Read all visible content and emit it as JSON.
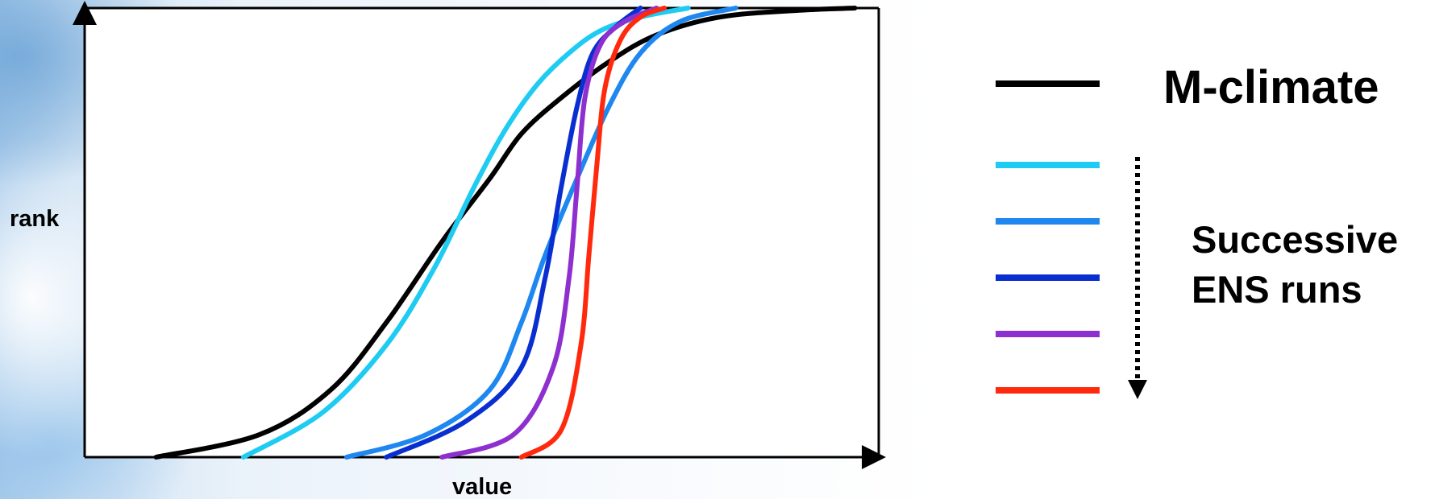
{
  "chart_data": {
    "type": "line",
    "xlabel": "value",
    "ylabel": "rank",
    "grid": false,
    "legend_placement": "right",
    "series": [
      {
        "name": "M-climate",
        "color": "#000000",
        "x": [
          0.09,
          0.22,
          0.31,
          0.38,
          0.45,
          0.51,
          0.55,
          0.6,
          0.66,
          0.72,
          0.8,
          0.9,
          0.97
        ],
        "y": [
          0.0,
          0.05,
          0.15,
          0.3,
          0.48,
          0.62,
          0.72,
          0.8,
          0.88,
          0.94,
          0.98,
          0.995,
          1.0
        ]
      },
      {
        "color": "#1ecbf2",
        "x": [
          0.2,
          0.3,
          0.38,
          0.44,
          0.49,
          0.53,
          0.57,
          0.61,
          0.65,
          0.7,
          0.76
        ],
        "y": [
          0.0,
          0.1,
          0.25,
          0.42,
          0.6,
          0.73,
          0.83,
          0.9,
          0.95,
          0.98,
          1.0
        ]
      },
      {
        "color": "#1e88f0",
        "x": [
          0.33,
          0.43,
          0.51,
          0.55,
          0.58,
          0.62,
          0.66,
          0.7,
          0.75,
          0.82
        ],
        "y": [
          0.0,
          0.05,
          0.15,
          0.3,
          0.45,
          0.62,
          0.78,
          0.9,
          0.97,
          1.0
        ]
      },
      {
        "color": "#0a2fd0",
        "x": [
          0.38,
          0.48,
          0.55,
          0.58,
          0.6,
          0.62,
          0.64,
          0.67,
          0.7
        ],
        "y": [
          0.0,
          0.08,
          0.2,
          0.4,
          0.6,
          0.78,
          0.9,
          0.96,
          1.0
        ]
      },
      {
        "color": "#8e2fcf",
        "x": [
          0.45,
          0.54,
          0.59,
          0.61,
          0.62,
          0.63,
          0.65,
          0.68,
          0.72
        ],
        "y": [
          0.0,
          0.05,
          0.2,
          0.4,
          0.6,
          0.8,
          0.92,
          0.97,
          1.0
        ]
      },
      {
        "color": "#ff2a0d",
        "x": [
          0.55,
          0.6,
          0.625,
          0.635,
          0.645,
          0.655,
          0.675,
          0.7,
          0.73
        ],
        "y": [
          0.0,
          0.06,
          0.25,
          0.45,
          0.65,
          0.82,
          0.93,
          0.98,
          1.0
        ]
      }
    ],
    "legend": {
      "title": "M-climate",
      "note_lines": [
        "Successive",
        "ENS runs"
      ]
    }
  }
}
